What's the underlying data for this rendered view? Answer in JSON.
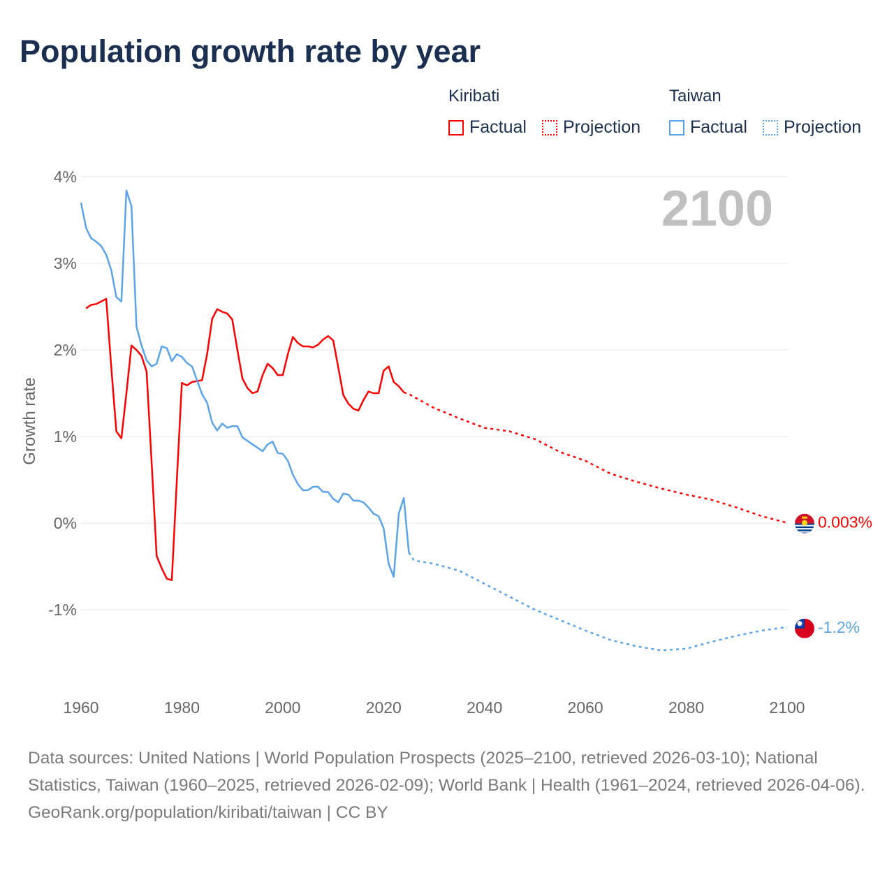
{
  "title": "Population growth rate by year",
  "legend": {
    "groups": [
      {
        "name": "Kiribati",
        "color": "#ff0000",
        "items": [
          "Factual",
          "Projection"
        ]
      },
      {
        "name": "Taiwan",
        "color": "#5ba4ea",
        "items": [
          "Factual",
          "Projection"
        ]
      }
    ]
  },
  "chart_data": {
    "type": "line",
    "title": "Population growth rate by year",
    "xlabel": "",
    "ylabel": "Growth rate",
    "xlim": [
      1960,
      2100
    ],
    "ylim": [
      -1.9,
      4.0
    ],
    "x_ticks": [
      1960,
      1980,
      2000,
      2020,
      2040,
      2060,
      2080,
      2100
    ],
    "x_tick_labels": [
      "1960",
      "1980",
      "2000",
      "2020",
      "2040",
      "2060",
      "2080",
      "2100"
    ],
    "y_ticks": [
      4,
      3,
      2,
      1,
      0,
      -1
    ],
    "y_tick_labels": [
      "4%",
      "3%",
      "2%",
      "1%",
      "0%",
      "-1%"
    ],
    "grid": true,
    "year_label": "2100",
    "series": [
      {
        "name": "Kiribati Factual",
        "color": "#ff0000",
        "dashed": false,
        "x": [
          1961,
          1962,
          1963,
          1964,
          1965,
          1966,
          1967,
          1968,
          1969,
          1970,
          1971,
          1972,
          1973,
          1974,
          1975,
          1976,
          1977,
          1978,
          1979,
          1980,
          1981,
          1982,
          1983,
          1984,
          1985,
          1986,
          1987,
          1988,
          1989,
          1990,
          1991,
          1992,
          1993,
          1994,
          1995,
          1996,
          1997,
          1998,
          1999,
          2000,
          2001,
          2002,
          2003,
          2004,
          2005,
          2006,
          2007,
          2008,
          2009,
          2010,
          2011,
          2012,
          2013,
          2014,
          2015,
          2016,
          2017,
          2018,
          2019,
          2020,
          2021,
          2022,
          2023,
          2024
        ],
        "y": [
          2.48,
          2.52,
          2.53,
          2.56,
          2.59,
          1.8,
          1.06,
          0.98,
          1.5,
          2.05,
          2.0,
          1.93,
          1.75,
          0.7,
          -0.38,
          -0.52,
          -0.64,
          -0.66,
          0.5,
          1.62,
          1.59,
          1.63,
          1.64,
          1.65,
          1.95,
          2.36,
          2.47,
          2.44,
          2.42,
          2.35,
          2.0,
          1.67,
          1.56,
          1.5,
          1.52,
          1.71,
          1.84,
          1.79,
          1.71,
          1.71,
          1.95,
          2.15,
          2.08,
          2.04,
          2.04,
          2.03,
          2.06,
          2.12,
          2.16,
          2.11,
          1.8,
          1.48,
          1.38,
          1.32,
          1.3,
          1.42,
          1.52,
          1.5,
          1.5,
          1.76,
          1.81,
          1.63,
          1.58,
          1.51
        ]
      },
      {
        "name": "Kiribati Projection",
        "color": "#ff0000",
        "dashed": true,
        "x": [
          2024,
          2025,
          2030,
          2035,
          2040,
          2045,
          2050,
          2055,
          2060,
          2065,
          2070,
          2075,
          2080,
          2085,
          2090,
          2095,
          2100
        ],
        "y": [
          1.51,
          1.49,
          1.33,
          1.21,
          1.1,
          1.06,
          0.97,
          0.82,
          0.72,
          0.57,
          0.48,
          0.4,
          0.33,
          0.27,
          0.18,
          0.08,
          0.003
        ]
      },
      {
        "name": "Taiwan Factual",
        "color": "#5ba4ea",
        "dashed": false,
        "x": [
          1960,
          1961,
          1962,
          1963,
          1964,
          1965,
          1966,
          1967,
          1968,
          1969,
          1970,
          1971,
          1972,
          1973,
          1974,
          1975,
          1976,
          1977,
          1978,
          1979,
          1980,
          1981,
          1982,
          1983,
          1984,
          1985,
          1986,
          1987,
          1988,
          1989,
          1990,
          1991,
          1992,
          1993,
          1994,
          1995,
          1996,
          1997,
          1998,
          1999,
          2000,
          2001,
          2002,
          2003,
          2004,
          2005,
          2006,
          2007,
          2008,
          2009,
          2010,
          2011,
          2012,
          2013,
          2014,
          2015,
          2016,
          2017,
          2018,
          2019,
          2020,
          2021,
          2022,
          2023,
          2024,
          2025
        ],
        "y": [
          3.7,
          3.41,
          3.29,
          3.25,
          3.2,
          3.1,
          2.92,
          2.61,
          2.56,
          3.84,
          3.66,
          2.27,
          2.05,
          1.88,
          1.81,
          1.84,
          2.04,
          2.02,
          1.87,
          1.95,
          1.92,
          1.85,
          1.81,
          1.65,
          1.49,
          1.39,
          1.16,
          1.07,
          1.15,
          1.1,
          1.12,
          1.12,
          0.99,
          0.95,
          0.91,
          0.87,
          0.83,
          0.91,
          0.94,
          0.81,
          0.8,
          0.72,
          0.56,
          0.45,
          0.38,
          0.38,
          0.42,
          0.42,
          0.36,
          0.36,
          0.28,
          0.24,
          0.34,
          0.33,
          0.26,
          0.26,
          0.24,
          0.18,
          0.11,
          0.08,
          -0.06,
          -0.47,
          -0.62,
          0.11,
          0.29,
          -0.34
        ]
      },
      {
        "name": "Taiwan Projection",
        "color": "#5ba4ea",
        "dashed": true,
        "x": [
          2025,
          2026,
          2030,
          2035,
          2040,
          2045,
          2050,
          2055,
          2060,
          2065,
          2070,
          2075,
          2080,
          2085,
          2090,
          2095,
          2100
        ],
        "y": [
          -0.34,
          -0.43,
          -0.47,
          -0.55,
          -0.7,
          -0.85,
          -1.0,
          -1.12,
          -1.24,
          -1.35,
          -1.42,
          -1.47,
          -1.45,
          -1.37,
          -1.3,
          -1.24,
          -1.2
        ]
      }
    ],
    "end_labels": [
      {
        "country": "Kiribati",
        "text": "0.003%",
        "value": 0.003,
        "color": "#ff0000"
      },
      {
        "country": "Taiwan",
        "text": "-1.2%",
        "value": -1.2,
        "color": "#5ba4ea"
      }
    ]
  },
  "footer": {
    "sources": "Data sources: United Nations | World Population Prospects (2025–2100, retrieved 2026-03-10); National Statistics, Taiwan (1960–2025, retrieved 2026-02-09); World Bank | Health (1961–2024, retrieved 2026-04-06).",
    "link": "GeoRank.org/population/kiribati/taiwan | CC BY"
  }
}
